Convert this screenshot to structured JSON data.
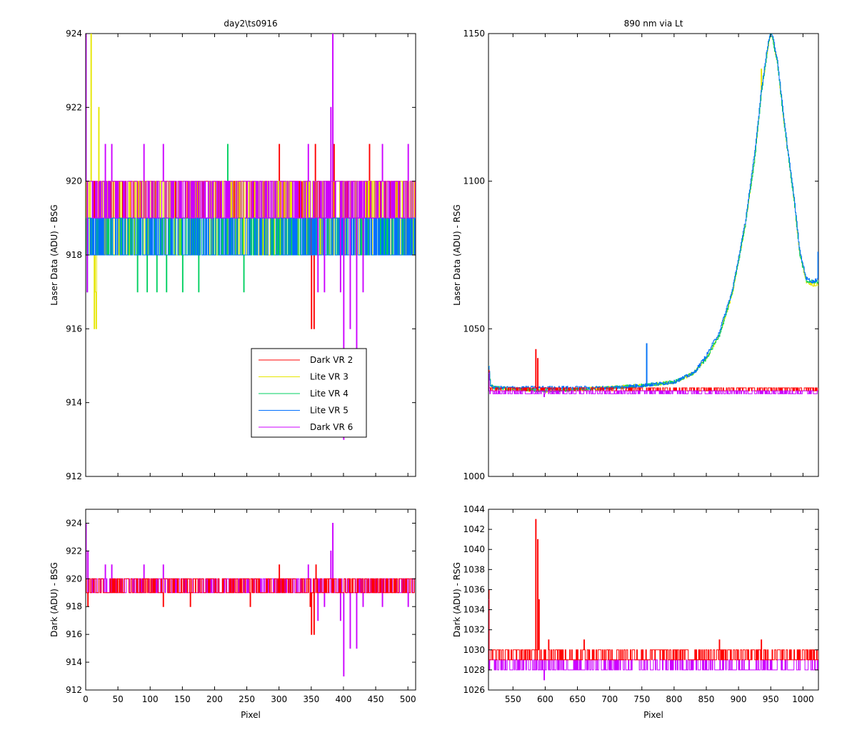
{
  "colors": {
    "Dark VR 2": "#ff0000",
    "Lite VR 3": "#e6e600",
    "Lite VR 4": "#00d060",
    "Lite VR 5": "#0070ff",
    "Dark VR 6": "#cc00ff"
  },
  "chart_data": [
    {
      "id": "top-left",
      "type": "line",
      "title": "day2\\ts0916",
      "xlabel": "",
      "ylabel": "Laser Data (ADU) - BSG",
      "xlim": [
        0,
        512
      ],
      "ylim": [
        912,
        924
      ],
      "xticks": [
        0,
        50,
        100,
        150,
        200,
        250,
        300,
        350,
        400,
        450,
        500
      ],
      "xticklabels": [],
      "yticks": [
        912,
        914,
        916,
        918,
        920,
        922,
        924
      ],
      "legend": {
        "position": "lower-right",
        "entries": [
          "Dark VR 2",
          "Lite VR 3",
          "Lite VR 4",
          "Lite VR 5",
          "Dark VR 6"
        ]
      },
      "series_model": [
        {
          "name": "Dark VR 2",
          "base": [
            919,
            920
          ],
          "spikes": [
            [
              350,
              916
            ],
            [
              354,
              916
            ],
            [
              356,
              921
            ],
            [
              385,
              921
            ],
            [
              300,
              921
            ],
            [
              440,
              921
            ]
          ]
        },
        {
          "name": "Lite VR 3",
          "base": [
            918,
            920
          ],
          "spikes": [
            [
              8,
              924
            ],
            [
              13,
              916
            ],
            [
              16,
              916
            ],
            [
              20,
              922
            ],
            [
              15,
              917
            ]
          ]
        },
        {
          "name": "Lite VR 4",
          "base": [
            918,
            919
          ],
          "spikes": [
            [
              80,
              917
            ],
            [
              95,
              917
            ],
            [
              110,
              917
            ],
            [
              125,
              917
            ],
            [
              150,
              917
            ],
            [
              175,
              917
            ],
            [
              220,
              921
            ],
            [
              245,
              917
            ]
          ]
        },
        {
          "name": "Lite VR 5",
          "base": [
            918,
            919
          ],
          "spikes": [
            [
              2,
              917
            ]
          ]
        },
        {
          "name": "Dark VR 6",
          "base": [
            919,
            920
          ],
          "spikes": [
            [
              0,
              924
            ],
            [
              2,
              917
            ],
            [
              30,
              921
            ],
            [
              40,
              921
            ],
            [
              90,
              921
            ],
            [
              120,
              921
            ],
            [
              383,
              924
            ],
            [
              400,
              913
            ],
            [
              420,
              915
            ],
            [
              430,
              917
            ],
            [
              410,
              916
            ],
            [
              395,
              917
            ],
            [
              370,
              917
            ],
            [
              360,
              917
            ],
            [
              345,
              921
            ],
            [
              380,
              922
            ],
            [
              460,
              921
            ],
            [
              500,
              921
            ]
          ]
        }
      ]
    },
    {
      "id": "top-right",
      "type": "line",
      "title": "890 nm via Lt",
      "xlabel": "",
      "ylabel": "Laser Data (ADU) - RSG",
      "xlim": [
        512,
        1024
      ],
      "ylim": [
        1000,
        1150
      ],
      "xticks": [
        550,
        600,
        650,
        700,
        750,
        800,
        850,
        900,
        950,
        1000
      ],
      "xticklabels": [],
      "yticks": [
        1000,
        1050,
        1100,
        1150
      ],
      "series_model": [
        {
          "name": "Lite VR 3",
          "curve": [
            [
              512,
              1037
            ],
            [
              515,
              1031
            ],
            [
              520,
              1030
            ],
            [
              600,
              1029
            ],
            [
              700,
              1030
            ],
            [
              760,
              1031
            ],
            [
              800,
              1032
            ],
            [
              830,
              1035
            ],
            [
              850,
              1040
            ],
            [
              870,
              1048
            ],
            [
              890,
              1062
            ],
            [
              910,
              1085
            ],
            [
              925,
              1108
            ],
            [
              935,
              1130
            ],
            [
              945,
              1145
            ],
            [
              950,
              1151
            ],
            [
              960,
              1140
            ],
            [
              970,
              1120
            ],
            [
              985,
              1095
            ],
            [
              995,
              1075
            ],
            [
              1005,
              1066
            ],
            [
              1015,
              1065
            ],
            [
              1024,
              1065
            ]
          ],
          "spikes": [
            [
              757,
              1045
            ],
            [
              935,
              1138
            ]
          ]
        },
        {
          "name": "Lite VR 4",
          "curve": [
            [
              512,
              1037
            ],
            [
              515,
              1031
            ],
            [
              520,
              1030
            ],
            [
              600,
              1029
            ],
            [
              700,
              1030
            ],
            [
              760,
              1031
            ],
            [
              800,
              1032
            ],
            [
              830,
              1035
            ],
            [
              850,
              1040
            ],
            [
              870,
              1048
            ],
            [
              890,
              1062
            ],
            [
              910,
              1085
            ],
            [
              925,
              1108
            ],
            [
              935,
              1130
            ],
            [
              945,
              1145
            ],
            [
              950,
              1151
            ],
            [
              960,
              1140
            ],
            [
              970,
              1120
            ],
            [
              985,
              1095
            ],
            [
              995,
              1075
            ],
            [
              1005,
              1066
            ],
            [
              1015,
              1066
            ],
            [
              1024,
              1066
            ]
          ],
          "spikes": []
        },
        {
          "name": "Lite VR 5",
          "curve": [
            [
              512,
              1037
            ],
            [
              515,
              1031
            ],
            [
              520,
              1030
            ],
            [
              600,
              1030
            ],
            [
              700,
              1030
            ],
            [
              760,
              1031
            ],
            [
              800,
              1032
            ],
            [
              830,
              1035
            ],
            [
              850,
              1041
            ],
            [
              870,
              1049
            ],
            [
              890,
              1063
            ],
            [
              910,
              1086
            ],
            [
              925,
              1110
            ],
            [
              935,
              1131
            ],
            [
              945,
              1146
            ],
            [
              950,
              1152
            ],
            [
              960,
              1141
            ],
            [
              970,
              1121
            ],
            [
              985,
              1096
            ],
            [
              995,
              1076
            ],
            [
              1005,
              1067
            ],
            [
              1015,
              1066
            ],
            [
              1024,
              1067
            ]
          ],
          "spikes": [
            [
              757,
              1045
            ],
            [
              1023,
              1076
            ]
          ]
        },
        {
          "name": "Dark VR 2",
          "base": [
            1029,
            1030
          ],
          "spikes": [
            [
              512,
              1036
            ],
            [
              585,
              1043
            ],
            [
              588,
              1040
            ]
          ]
        },
        {
          "name": "Dark VR 6",
          "base": [
            1028,
            1029
          ],
          "spikes": [
            [
              512,
              1035
            ],
            [
              598,
              1027
            ]
          ]
        }
      ]
    },
    {
      "id": "bottom-left",
      "type": "line",
      "title": "",
      "xlabel": "Pixel",
      "ylabel": "Dark (ADU) - BSG",
      "xlim": [
        0,
        512
      ],
      "ylim": [
        912,
        925
      ],
      "xticks": [
        0,
        50,
        100,
        150,
        200,
        250,
        300,
        350,
        400,
        450,
        500
      ],
      "xticklabels": [
        "0",
        "50",
        "100",
        "150",
        "200",
        "250",
        "300",
        "350",
        "400",
        "450",
        "500"
      ],
      "yticks": [
        912,
        914,
        916,
        918,
        920,
        922,
        924
      ],
      "series_model": [
        {
          "name": "Dark VR 6",
          "base": [
            919,
            920
          ],
          "spikes": [
            [
              0,
              924
            ],
            [
              3,
              922
            ],
            [
              30,
              921
            ],
            [
              40,
              921
            ],
            [
              90,
              921
            ],
            [
              120,
              921
            ],
            [
              345,
              921
            ],
            [
              380,
              922
            ],
            [
              383,
              924
            ],
            [
              400,
              913
            ],
            [
              395,
              917
            ],
            [
              410,
              915
            ],
            [
              420,
              915
            ],
            [
              430,
              918
            ],
            [
              360,
              917
            ],
            [
              370,
              918
            ],
            [
              460,
              918
            ],
            [
              500,
              918
            ]
          ]
        },
        {
          "name": "Dark VR 2",
          "base": [
            919,
            920
          ],
          "spikes": [
            [
              3,
              918
            ],
            [
              120,
              918
            ],
            [
              162,
              918
            ],
            [
              255,
              918
            ],
            [
              350,
              916
            ],
            [
              354,
              916
            ],
            [
              357,
              921
            ],
            [
              348,
              918
            ],
            [
              300,
              921
            ]
          ]
        }
      ]
    },
    {
      "id": "bottom-right",
      "type": "line",
      "title": "",
      "xlabel": "Pixel",
      "ylabel": "Dark (ADU) - RSG",
      "xlim": [
        512,
        1024
      ],
      "ylim": [
        1026,
        1044
      ],
      "xticks": [
        550,
        600,
        650,
        700,
        750,
        800,
        850,
        900,
        950,
        1000
      ],
      "xticklabels": [
        "550",
        "600",
        "650",
        "700",
        "750",
        "800",
        "850",
        "900",
        "950",
        "1000"
      ],
      "yticks": [
        1026,
        1028,
        1030,
        1032,
        1034,
        1036,
        1038,
        1040,
        1042,
        1044
      ],
      "series_model": [
        {
          "name": "Dark VR 6",
          "base": [
            1028,
            1029
          ],
          "spikes": [
            [
              512,
              1035
            ],
            [
              598,
              1027
            ],
            [
              930,
              1030
            ]
          ]
        },
        {
          "name": "Dark VR 2",
          "base": [
            1029,
            1030
          ],
          "spikes": [
            [
              512,
              1036
            ],
            [
              585,
              1043
            ],
            [
              588,
              1041
            ],
            [
              590,
              1035
            ],
            [
              605,
              1031
            ],
            [
              660,
              1031
            ],
            [
              870,
              1031
            ],
            [
              935,
              1031
            ]
          ]
        }
      ]
    }
  ]
}
